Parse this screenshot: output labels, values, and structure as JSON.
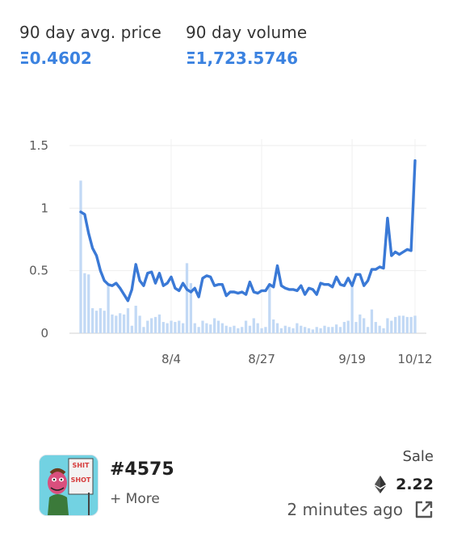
{
  "stats": {
    "avg_price_label": "90 day avg. price",
    "avg_price_value": "Ξ0.4602",
    "volume_label": "90 day volume",
    "volume_value": "Ξ1,723.5746"
  },
  "colors": {
    "accent": "#3b82e0",
    "line": "#3a79d6",
    "bars": "#c2d9f5"
  },
  "chart_data": {
    "type": "line",
    "x_tick_labels": [
      "8/4",
      "8/27",
      "9/19",
      "10/12"
    ],
    "y_tick_labels": [
      "0",
      "0.5",
      "1",
      "1.5"
    ],
    "ylim": [
      0,
      1.5
    ],
    "grid": true,
    "series": [
      {
        "type": "line",
        "values": [
          0.97,
          0.95,
          0.8,
          0.68,
          0.62,
          0.5,
          0.42,
          0.39,
          0.38,
          0.4,
          0.36,
          0.31,
          0.26,
          0.35,
          0.55,
          0.42,
          0.38,
          0.48,
          0.49,
          0.4,
          0.48,
          0.38,
          0.4,
          0.45,
          0.36,
          0.34,
          0.4,
          0.35,
          0.33,
          0.36,
          0.29,
          0.44,
          0.46,
          0.45,
          0.38,
          0.39,
          0.39,
          0.3,
          0.33,
          0.33,
          0.32,
          0.33,
          0.31,
          0.41,
          0.33,
          0.32,
          0.34,
          0.34,
          0.39,
          0.37,
          0.54,
          0.38,
          0.36,
          0.35,
          0.35,
          0.34,
          0.38,
          0.31,
          0.36,
          0.35,
          0.31,
          0.4,
          0.39,
          0.39,
          0.37,
          0.45,
          0.39,
          0.38,
          0.44,
          0.38,
          0.47,
          0.47,
          0.38,
          0.42,
          0.51,
          0.51,
          0.53,
          0.52,
          0.92,
          0.62,
          0.65,
          0.63,
          0.65,
          0.67,
          0.66,
          1.38
        ]
      },
      {
        "type": "bar",
        "values": [
          1.22,
          0.48,
          0.47,
          0.2,
          0.18,
          0.2,
          0.18,
          0.4,
          0.15,
          0.14,
          0.16,
          0.15,
          0.2,
          0.06,
          0.22,
          0.14,
          0.05,
          0.1,
          0.12,
          0.13,
          0.15,
          0.09,
          0.08,
          0.1,
          0.09,
          0.1,
          0.08,
          0.56,
          0.4,
          0.08,
          0.05,
          0.1,
          0.08,
          0.07,
          0.12,
          0.1,
          0.08,
          0.06,
          0.05,
          0.06,
          0.04,
          0.05,
          0.1,
          0.06,
          0.12,
          0.08,
          0.04,
          0.05,
          0.38,
          0.11,
          0.08,
          0.04,
          0.06,
          0.05,
          0.04,
          0.08,
          0.06,
          0.05,
          0.04,
          0.03,
          0.05,
          0.04,
          0.06,
          0.05,
          0.05,
          0.07,
          0.05,
          0.09,
          0.1,
          0.4,
          0.09,
          0.15,
          0.12,
          0.05,
          0.19,
          0.09,
          0.06,
          0.04,
          0.12,
          0.1,
          0.13,
          0.14,
          0.14,
          0.13,
          0.13,
          0.14
        ]
      }
    ]
  },
  "listing": {
    "token_id": "#4575",
    "more_label": "+ More",
    "sale_label": "Sale",
    "price": "2.22",
    "time_ago": "2 minutes ago",
    "thumb_text_1": "SHIT",
    "thumb_text_2": "SHOT"
  },
  "icons": {
    "price_icon": "ethereum-icon",
    "link_icon": "external-link-icon"
  }
}
